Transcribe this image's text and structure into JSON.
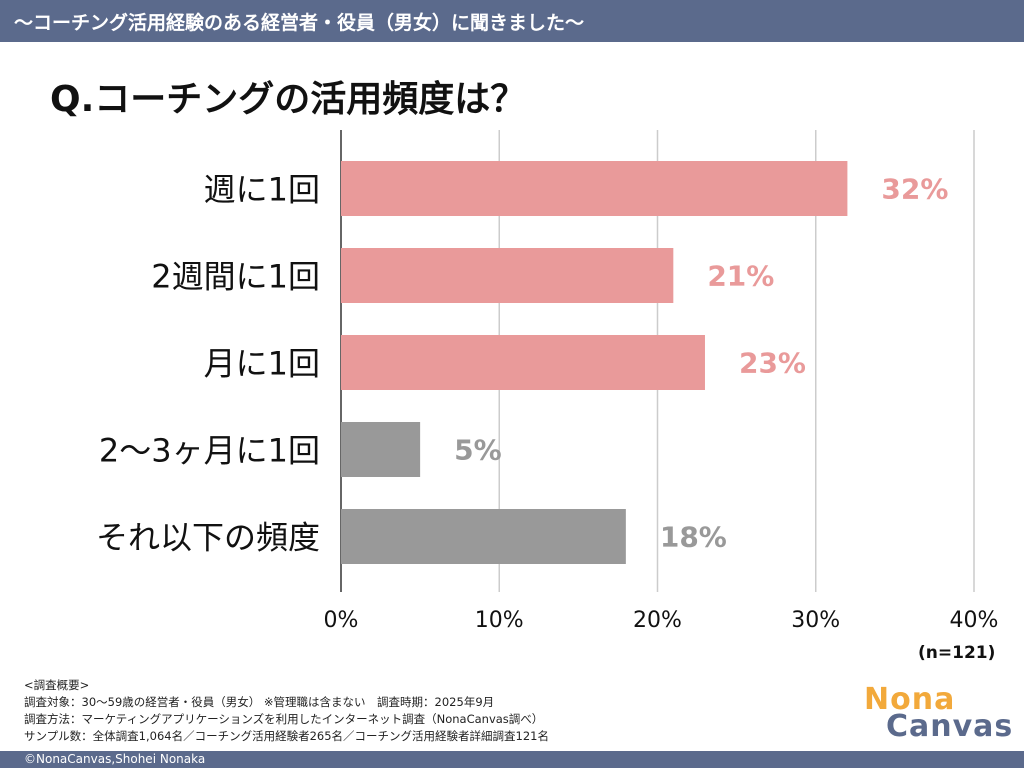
{
  "header": {
    "title": "〜コーチング活用経験のある経営者・役員（男女）に聞きました〜"
  },
  "question": "Q.コーチングの活用頻度は？",
  "colors": {
    "header_bg": "#5b6a8c",
    "pink": "#e99a9a",
    "gray": "#999999",
    "pink_label": "#e99a9a",
    "gray_label": "#999999"
  },
  "chart_data": {
    "type": "bar",
    "orientation": "horizontal",
    "categories": [
      "週に1回",
      "2週間に1回",
      "月に1回",
      "2〜3ヶ月に1回",
      "それ以下の頻度"
    ],
    "values": [
      32,
      21,
      23,
      5,
      18
    ],
    "value_labels": [
      "32%",
      "21%",
      "23%",
      "5%",
      "18%"
    ],
    "bar_colors": [
      "pink",
      "pink",
      "pink",
      "gray",
      "gray"
    ],
    "xlim": [
      0,
      40
    ],
    "xticks": [
      0,
      10,
      20,
      30,
      40
    ],
    "xtick_labels": [
      "0%",
      "10%",
      "20%",
      "30%",
      "40%"
    ],
    "grid": true,
    "title": "",
    "xlabel": "",
    "ylabel": ""
  },
  "sample_size": "(n=121)",
  "notes": {
    "heading": "<調査概要>",
    "target": "調査対象：30〜59歳の経営者・役員（男女） ※管理職は含まない　調査時期：2025年9月",
    "method": "調査方法：マーケティングアプリケーションズを利用したインターネット調査（NonaCanvas調べ）",
    "samples": "サンプル数：全体調査1,064名／コーチング活用経験者265名／コーチング活用経験者詳細調査121名"
  },
  "logo": {
    "line1": "Nona",
    "line2": "Canvas"
  },
  "footer": {
    "copyright": "©NonaCanvas,Shohei Nonaka"
  }
}
